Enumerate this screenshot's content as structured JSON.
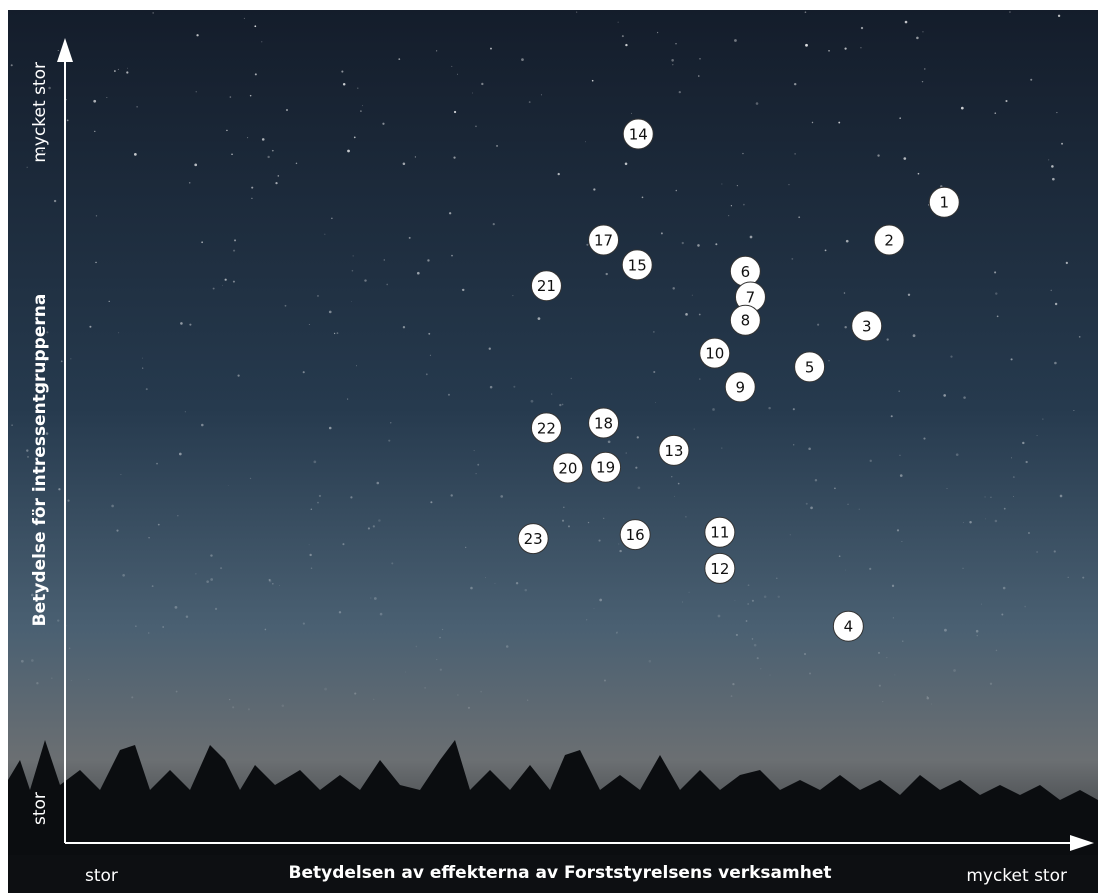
{
  "chart_data": {
    "type": "scatter",
    "x_label": "Betydelsen av effekterna av Forststyrelsens verksamhet",
    "y_label": "Betydelse för intressentgrupperna",
    "xlim": [
      0,
      100
    ],
    "ylim": [
      0,
      100
    ],
    "xticks": [
      {
        "value": 0,
        "label": "stor"
      },
      {
        "value": 100,
        "label": "mycket stor"
      }
    ],
    "yticks": [
      {
        "value": 0,
        "label": "stor"
      },
      {
        "value": 100,
        "label": "mycket stor"
      }
    ],
    "color": "#ffffff",
    "labels": [
      "1",
      "2",
      "3",
      "4",
      "5",
      "6",
      "7",
      "8",
      "9",
      "10",
      "11",
      "12",
      "13",
      "14",
      "15",
      "16",
      "17",
      "18",
      "19",
      "20",
      "21",
      "22",
      "23"
    ],
    "x": [
      86.2,
      80.8,
      78.6,
      76.8,
      73.0,
      66.7,
      67.2,
      66.7,
      66.2,
      63.7,
      64.2,
      64.2,
      59.7,
      56.2,
      56.1,
      55.9,
      52.8,
      52.8,
      53.0,
      49.3,
      47.2,
      47.2,
      45.9
    ],
    "y": [
      79.8,
      75.1,
      64.4,
      27.0,
      59.3,
      71.2,
      68.0,
      65.1,
      56.8,
      61.0,
      38.7,
      34.2,
      48.9,
      88.3,
      72.0,
      38.4,
      75.1,
      52.3,
      46.8,
      46.7,
      69.4,
      51.7,
      37.9
    ]
  }
}
